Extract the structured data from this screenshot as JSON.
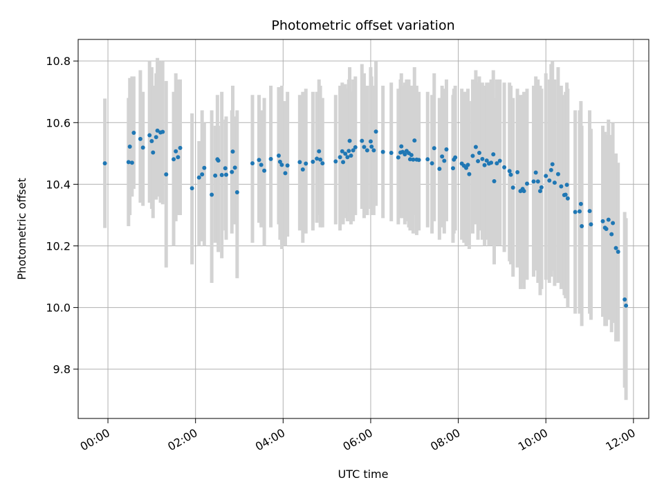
{
  "chart_data": {
    "type": "scatter",
    "title": "Photometric offset variation",
    "xlabel": "UTC time",
    "ylabel": "Photometric offset",
    "x_unit": "hours",
    "xlim": [
      -0.68,
      12.35
    ],
    "ylim": [
      9.64,
      10.87
    ],
    "x_ticks": [
      {
        "value": 0,
        "label": "00:00"
      },
      {
        "value": 2,
        "label": "02:00"
      },
      {
        "value": 4,
        "label": "04:00"
      },
      {
        "value": 6,
        "label": "06:00"
      },
      {
        "value": 8,
        "label": "08:00"
      },
      {
        "value": 10,
        "label": "10:00"
      },
      {
        "value": 12,
        "label": "12:00"
      }
    ],
    "y_ticks": [
      {
        "value": 9.8,
        "label": "9.8"
      },
      {
        "value": 10.0,
        "label": "10.0"
      },
      {
        "value": 10.2,
        "label": "10.2"
      },
      {
        "value": 10.4,
        "label": "10.4"
      },
      {
        "value": 10.6,
        "label": "10.6"
      },
      {
        "value": 10.8,
        "label": "10.8"
      }
    ],
    "grid": true,
    "colors": {
      "point": "#1f77b4",
      "errorbar": "#d3d3d3",
      "grid": "#b0b0b0"
    },
    "points": [
      [
        -0.07,
        10.468,
        10.258,
        10.678
      ],
      [
        0.47,
        10.472,
        10.264,
        10.68
      ],
      [
        0.5,
        10.522,
        10.3,
        10.745
      ],
      [
        0.55,
        10.47,
        10.36,
        10.75
      ],
      [
        0.59,
        10.567,
        10.385,
        10.75
      ],
      [
        0.74,
        10.547,
        10.34,
        10.77
      ],
      [
        0.8,
        10.519,
        10.33,
        10.7
      ],
      [
        0.95,
        10.559,
        10.34,
        10.8
      ],
      [
        1.0,
        10.54,
        10.32,
        10.78
      ],
      [
        1.03,
        10.503,
        10.29,
        10.72
      ],
      [
        1.1,
        10.553,
        10.35,
        10.76
      ],
      [
        1.13,
        10.574,
        10.36,
        10.81
      ],
      [
        1.2,
        10.568,
        10.34,
        10.8
      ],
      [
        1.25,
        10.57,
        10.335,
        10.8
      ],
      [
        1.33,
        10.432,
        10.13,
        10.735
      ],
      [
        1.5,
        10.481,
        10.2,
        10.7
      ],
      [
        1.55,
        10.507,
        10.28,
        10.76
      ],
      [
        1.6,
        10.488,
        10.3,
        10.74
      ],
      [
        1.65,
        10.518,
        10.3,
        10.74
      ],
      [
        1.92,
        10.387,
        10.14,
        10.63
      ],
      [
        2.08,
        10.422,
        10.2,
        10.54
      ],
      [
        2.15,
        10.432,
        10.215,
        10.64
      ],
      [
        2.2,
        10.453,
        10.2,
        10.6
      ],
      [
        2.37,
        10.366,
        10.08,
        10.64
      ],
      [
        2.45,
        10.428,
        10.21,
        10.59
      ],
      [
        2.5,
        10.481,
        10.27,
        10.69
      ],
      [
        2.52,
        10.477,
        10.18,
        10.59
      ],
      [
        2.6,
        10.43,
        10.16,
        10.7
      ],
      [
        2.68,
        10.452,
        10.25,
        10.61
      ],
      [
        2.7,
        10.431,
        10.22,
        10.62
      ],
      [
        2.83,
        10.44,
        10.24,
        10.64
      ],
      [
        2.85,
        10.506,
        10.29,
        10.72
      ],
      [
        2.9,
        10.454,
        10.27,
        10.62
      ],
      [
        2.95,
        10.374,
        10.095,
        10.64
      ],
      [
        3.3,
        10.468,
        10.21,
        10.69
      ],
      [
        3.45,
        10.479,
        10.275,
        10.69
      ],
      [
        3.5,
        10.463,
        10.26,
        10.64
      ],
      [
        3.57,
        10.444,
        10.2,
        10.68
      ],
      [
        3.72,
        10.482,
        10.26,
        10.72
      ],
      [
        3.9,
        10.493,
        10.27,
        10.715
      ],
      [
        3.93,
        10.473,
        10.22,
        10.71
      ],
      [
        3.97,
        10.463,
        10.19,
        10.72
      ],
      [
        4.05,
        10.436,
        10.2,
        10.67
      ],
      [
        4.1,
        10.461,
        10.23,
        10.7
      ],
      [
        4.38,
        10.472,
        10.25,
        10.69
      ],
      [
        4.45,
        10.448,
        10.21,
        10.7
      ],
      [
        4.52,
        10.467,
        10.24,
        10.71
      ],
      [
        4.68,
        10.473,
        10.25,
        10.7
      ],
      [
        4.77,
        10.483,
        10.275,
        10.7
      ],
      [
        4.82,
        10.507,
        10.3,
        10.74
      ],
      [
        4.85,
        10.48,
        10.26,
        10.72
      ],
      [
        4.9,
        10.468,
        10.26,
        10.68
      ],
      [
        5.2,
        10.474,
        10.27,
        10.69
      ],
      [
        5.3,
        10.488,
        10.25,
        10.72
      ],
      [
        5.35,
        10.507,
        10.285,
        10.73
      ],
      [
        5.37,
        10.472,
        10.27,
        10.68
      ],
      [
        5.42,
        10.499,
        10.29,
        10.725
      ],
      [
        5.47,
        10.488,
        10.28,
        10.71
      ],
      [
        5.5,
        10.508,
        10.28,
        10.74
      ],
      [
        5.52,
        10.541,
        10.31,
        10.78
      ],
      [
        5.55,
        10.493,
        10.27,
        10.7
      ],
      [
        5.6,
        10.51,
        10.28,
        10.74
      ],
      [
        5.65,
        10.52,
        10.3,
        10.75
      ],
      [
        5.8,
        10.541,
        10.32,
        10.79
      ],
      [
        5.85,
        10.521,
        10.29,
        10.76
      ],
      [
        5.92,
        10.51,
        10.3,
        10.72
      ],
      [
        6.0,
        10.539,
        10.32,
        10.78
      ],
      [
        6.02,
        10.522,
        10.3,
        10.75
      ],
      [
        6.07,
        10.51,
        10.3,
        10.72
      ],
      [
        6.12,
        10.571,
        10.33,
        10.8
      ],
      [
        6.28,
        10.505,
        10.29,
        10.72
      ],
      [
        6.47,
        10.502,
        10.28,
        10.73
      ],
      [
        6.63,
        10.487,
        10.27,
        10.71
      ],
      [
        6.68,
        10.503,
        10.29,
        10.74
      ],
      [
        6.7,
        10.523,
        10.3,
        10.76
      ],
      [
        6.73,
        10.505,
        10.29,
        10.72
      ],
      [
        6.78,
        10.497,
        10.27,
        10.73
      ],
      [
        6.82,
        10.508,
        10.28,
        10.74
      ],
      [
        6.87,
        10.501,
        10.26,
        10.74
      ],
      [
        6.9,
        10.481,
        10.25,
        10.71
      ],
      [
        6.93,
        10.495,
        10.26,
        10.72
      ],
      [
        6.97,
        10.48,
        10.24,
        10.72
      ],
      [
        7.0,
        10.542,
        10.3,
        10.78
      ],
      [
        7.05,
        10.48,
        10.235,
        10.72
      ],
      [
        7.1,
        10.479,
        10.25,
        10.7
      ],
      [
        7.3,
        10.481,
        10.26,
        10.7
      ],
      [
        7.4,
        10.468,
        10.24,
        10.69
      ],
      [
        7.45,
        10.517,
        10.28,
        10.76
      ],
      [
        7.57,
        10.45,
        10.22,
        10.68
      ],
      [
        7.63,
        10.49,
        10.26,
        10.72
      ],
      [
        7.68,
        10.476,
        10.24,
        10.71
      ],
      [
        7.73,
        10.513,
        10.28,
        10.74
      ],
      [
        7.88,
        10.452,
        10.21,
        10.69
      ],
      [
        7.9,
        10.48,
        10.24,
        10.71
      ],
      [
        7.93,
        10.487,
        10.25,
        10.72
      ],
      [
        8.08,
        10.467,
        10.22,
        10.71
      ],
      [
        8.13,
        10.46,
        10.21,
        10.7
      ],
      [
        8.18,
        10.453,
        10.2,
        10.7
      ],
      [
        8.22,
        10.463,
        10.22,
        10.71
      ],
      [
        8.25,
        10.433,
        10.19,
        10.67
      ],
      [
        8.33,
        10.492,
        10.24,
        10.74
      ],
      [
        8.4,
        10.521,
        10.27,
        10.77
      ],
      [
        8.45,
        10.475,
        10.22,
        10.73
      ],
      [
        8.48,
        10.502,
        10.25,
        10.75
      ],
      [
        8.55,
        10.482,
        10.22,
        10.73
      ],
      [
        8.6,
        10.462,
        10.2,
        10.72
      ],
      [
        8.65,
        10.477,
        10.22,
        10.73
      ],
      [
        8.7,
        10.467,
        10.2,
        10.73
      ],
      [
        8.75,
        10.47,
        10.2,
        10.74
      ],
      [
        8.8,
        10.497,
        10.22,
        10.77
      ],
      [
        8.82,
        10.41,
        10.14,
        10.68
      ],
      [
        8.88,
        10.468,
        10.2,
        10.74
      ],
      [
        8.95,
        10.476,
        10.2,
        10.74
      ],
      [
        9.05,
        10.455,
        10.18,
        10.73
      ],
      [
        9.17,
        10.443,
        10.15,
        10.73
      ],
      [
        9.2,
        10.431,
        10.14,
        10.72
      ],
      [
        9.25,
        10.389,
        10.1,
        10.68
      ],
      [
        9.35,
        10.439,
        10.13,
        10.71
      ],
      [
        9.42,
        10.378,
        10.06,
        10.69
      ],
      [
        9.47,
        10.385,
        10.08,
        10.69
      ],
      [
        9.5,
        10.378,
        10.06,
        10.7
      ],
      [
        9.57,
        10.402,
        10.09,
        10.71
      ],
      [
        9.72,
        10.409,
        10.1,
        10.72
      ],
      [
        9.77,
        10.438,
        10.12,
        10.75
      ],
      [
        9.82,
        10.409,
        10.08,
        10.74
      ],
      [
        9.87,
        10.378,
        10.04,
        10.72
      ],
      [
        9.9,
        10.39,
        10.06,
        10.71
      ],
      [
        10.0,
        10.427,
        10.09,
        10.76
      ],
      [
        10.08,
        10.412,
        10.08,
        10.74
      ],
      [
        10.12,
        10.446,
        10.1,
        10.79
      ],
      [
        10.15,
        10.465,
        10.12,
        10.8
      ],
      [
        10.2,
        10.405,
        10.07,
        10.74
      ],
      [
        10.28,
        10.433,
        10.08,
        10.78
      ],
      [
        10.35,
        10.393,
        10.06,
        10.72
      ],
      [
        10.42,
        10.365,
        10.04,
        10.69
      ],
      [
        10.45,
        10.366,
        10.03,
        10.7
      ],
      [
        10.48,
        10.398,
        10.06,
        10.73
      ],
      [
        10.5,
        10.354,
        10.0,
        10.71
      ],
      [
        10.67,
        10.31,
        9.98,
        10.64
      ],
      [
        10.77,
        10.312,
        9.98,
        10.64
      ],
      [
        10.8,
        10.336,
        10.0,
        10.67
      ],
      [
        10.82,
        10.264,
        9.94,
        10.59
      ],
      [
        11.0,
        10.313,
        9.98,
        10.64
      ],
      [
        11.03,
        10.27,
        9.96,
        10.58
      ],
      [
        11.3,
        10.28,
        9.97,
        10.59
      ],
      [
        11.35,
        10.259,
        9.94,
        10.57
      ],
      [
        11.38,
        10.255,
        9.94,
        10.56
      ],
      [
        11.43,
        10.285,
        9.96,
        10.61
      ],
      [
        11.5,
        10.238,
        9.92,
        10.56
      ],
      [
        11.53,
        10.274,
        9.95,
        10.6
      ],
      [
        11.6,
        10.193,
        9.89,
        10.5
      ],
      [
        11.65,
        10.181,
        9.89,
        10.47
      ],
      [
        11.8,
        10.026,
        9.74,
        10.31
      ],
      [
        11.83,
        10.006,
        9.7,
        10.29
      ]
    ]
  }
}
